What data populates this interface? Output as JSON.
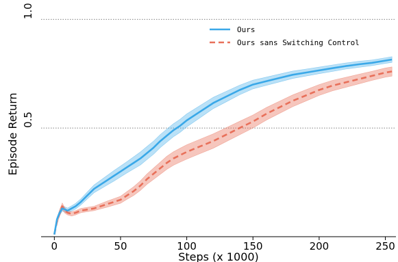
{
  "chart_data": {
    "type": "line",
    "xlabel": "Steps (x 1000)",
    "ylabel": "Episode Return",
    "xlim": [
      -10,
      258
    ],
    "ylim": [
      0.0,
      1.07
    ],
    "xticks": [
      "0",
      "50",
      "100",
      "150",
      "200",
      "250"
    ],
    "xtick_values": [
      0,
      50,
      100,
      150,
      200,
      250
    ],
    "yticks": [
      "0.5",
      "1.0"
    ],
    "ytick_values": [
      0.5,
      1.0
    ],
    "grid": "horizontal dotted",
    "legend_position": "top-right",
    "series": [
      {
        "name": "Ours",
        "color": "#3aa8e8",
        "style": "solid",
        "x": [
          0,
          2,
          4,
          6,
          8,
          10,
          13,
          16,
          20,
          25,
          30,
          35,
          40,
          45,
          50,
          55,
          60,
          65,
          70,
          75,
          80,
          85,
          90,
          95,
          100,
          110,
          120,
          130,
          140,
          150,
          160,
          170,
          180,
          190,
          200,
          210,
          220,
          230,
          240,
          250,
          255
        ],
        "y": [
          0.01,
          0.08,
          0.11,
          0.13,
          0.125,
          0.12,
          0.13,
          0.14,
          0.16,
          0.19,
          0.22,
          0.24,
          0.26,
          0.28,
          0.3,
          0.32,
          0.34,
          0.36,
          0.385,
          0.41,
          0.44,
          0.465,
          0.49,
          0.51,
          0.535,
          0.575,
          0.615,
          0.645,
          0.675,
          0.7,
          0.715,
          0.73,
          0.745,
          0.755,
          0.765,
          0.775,
          0.785,
          0.793,
          0.8,
          0.81,
          0.815
        ],
        "band": [
          0.0,
          0.01,
          0.012,
          0.012,
          0.012,
          0.012,
          0.012,
          0.013,
          0.014,
          0.016,
          0.018,
          0.02,
          0.022,
          0.024,
          0.025,
          0.026,
          0.028,
          0.03,
          0.03,
          0.03,
          0.03,
          0.03,
          0.03,
          0.03,
          0.03,
          0.028,
          0.026,
          0.024,
          0.022,
          0.02,
          0.019,
          0.018,
          0.017,
          0.016,
          0.015,
          0.015,
          0.014,
          0.014,
          0.013,
          0.013,
          0.013
        ]
      },
      {
        "name": "Ours sans Switching Control",
        "color": "#e8705a",
        "style": "dashed",
        "x": [
          0,
          2,
          4,
          6,
          8,
          10,
          13,
          16,
          20,
          25,
          30,
          35,
          40,
          45,
          50,
          55,
          60,
          65,
          70,
          75,
          80,
          85,
          90,
          95,
          100,
          110,
          120,
          130,
          140,
          150,
          160,
          170,
          180,
          190,
          200,
          210,
          220,
          230,
          240,
          250,
          255
        ],
        "y": [
          0.01,
          0.07,
          0.11,
          0.14,
          0.12,
          0.11,
          0.105,
          0.11,
          0.12,
          0.125,
          0.13,
          0.14,
          0.15,
          0.16,
          0.17,
          0.19,
          0.21,
          0.235,
          0.265,
          0.29,
          0.315,
          0.34,
          0.36,
          0.375,
          0.39,
          0.415,
          0.44,
          0.47,
          0.5,
          0.53,
          0.565,
          0.595,
          0.625,
          0.65,
          0.675,
          0.695,
          0.71,
          0.725,
          0.74,
          0.755,
          0.76
        ],
        "band": [
          0.0,
          0.012,
          0.015,
          0.015,
          0.012,
          0.01,
          0.01,
          0.01,
          0.01,
          0.01,
          0.01,
          0.012,
          0.014,
          0.015,
          0.016,
          0.018,
          0.02,
          0.022,
          0.024,
          0.026,
          0.028,
          0.03,
          0.031,
          0.032,
          0.033,
          0.033,
          0.033,
          0.032,
          0.031,
          0.03,
          0.029,
          0.028,
          0.027,
          0.026,
          0.025,
          0.024,
          0.023,
          0.022,
          0.021,
          0.021,
          0.021
        ]
      }
    ]
  }
}
